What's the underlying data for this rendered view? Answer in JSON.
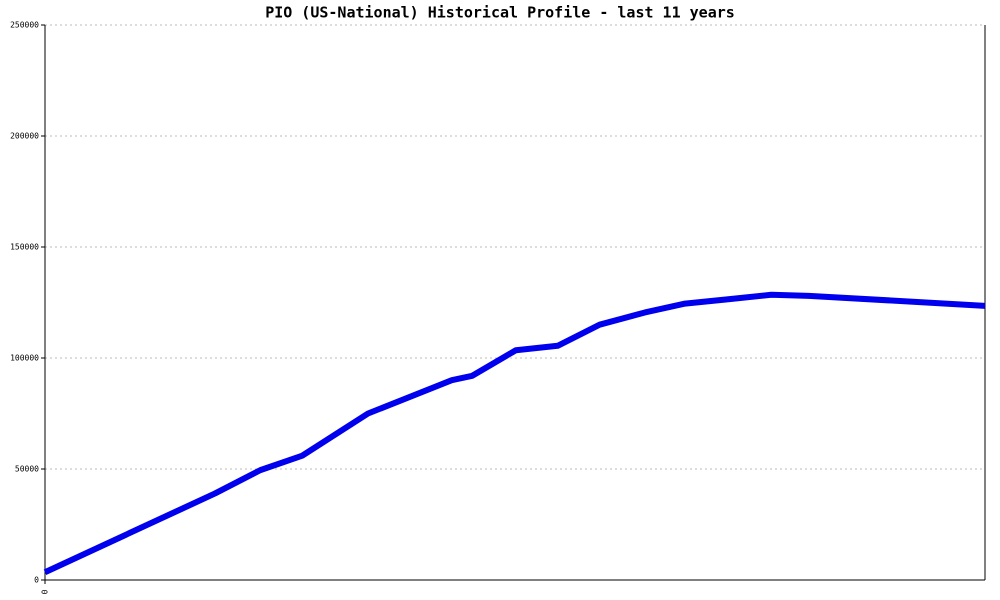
{
  "chart_data": {
    "type": "line",
    "title": "PIO (US-National) Historical Profile - last 11 years",
    "x": [
      0,
      1.99,
      2.52,
      3.01,
      3.78,
      4.76,
      5.0,
      5.51,
      6.0,
      6.49,
      7.02,
      7.49,
      8.01,
      8.5,
      8.94,
      11
    ],
    "series": [
      {
        "name": "PIO",
        "color": "#0000ee",
        "values": [
          3500,
          39000,
          49500,
          56000,
          75000,
          90000,
          92000,
          103500,
          105500,
          115000,
          120500,
          124500,
          126500,
          128500,
          128000,
          123500
        ]
      }
    ],
    "xlim": [
      0,
      11
    ],
    "xticks": [
      0
    ],
    "ylim": [
      0,
      250000
    ],
    "yticks": [
      0,
      50000,
      100000,
      150000,
      200000,
      250000
    ],
    "grid": true
  }
}
